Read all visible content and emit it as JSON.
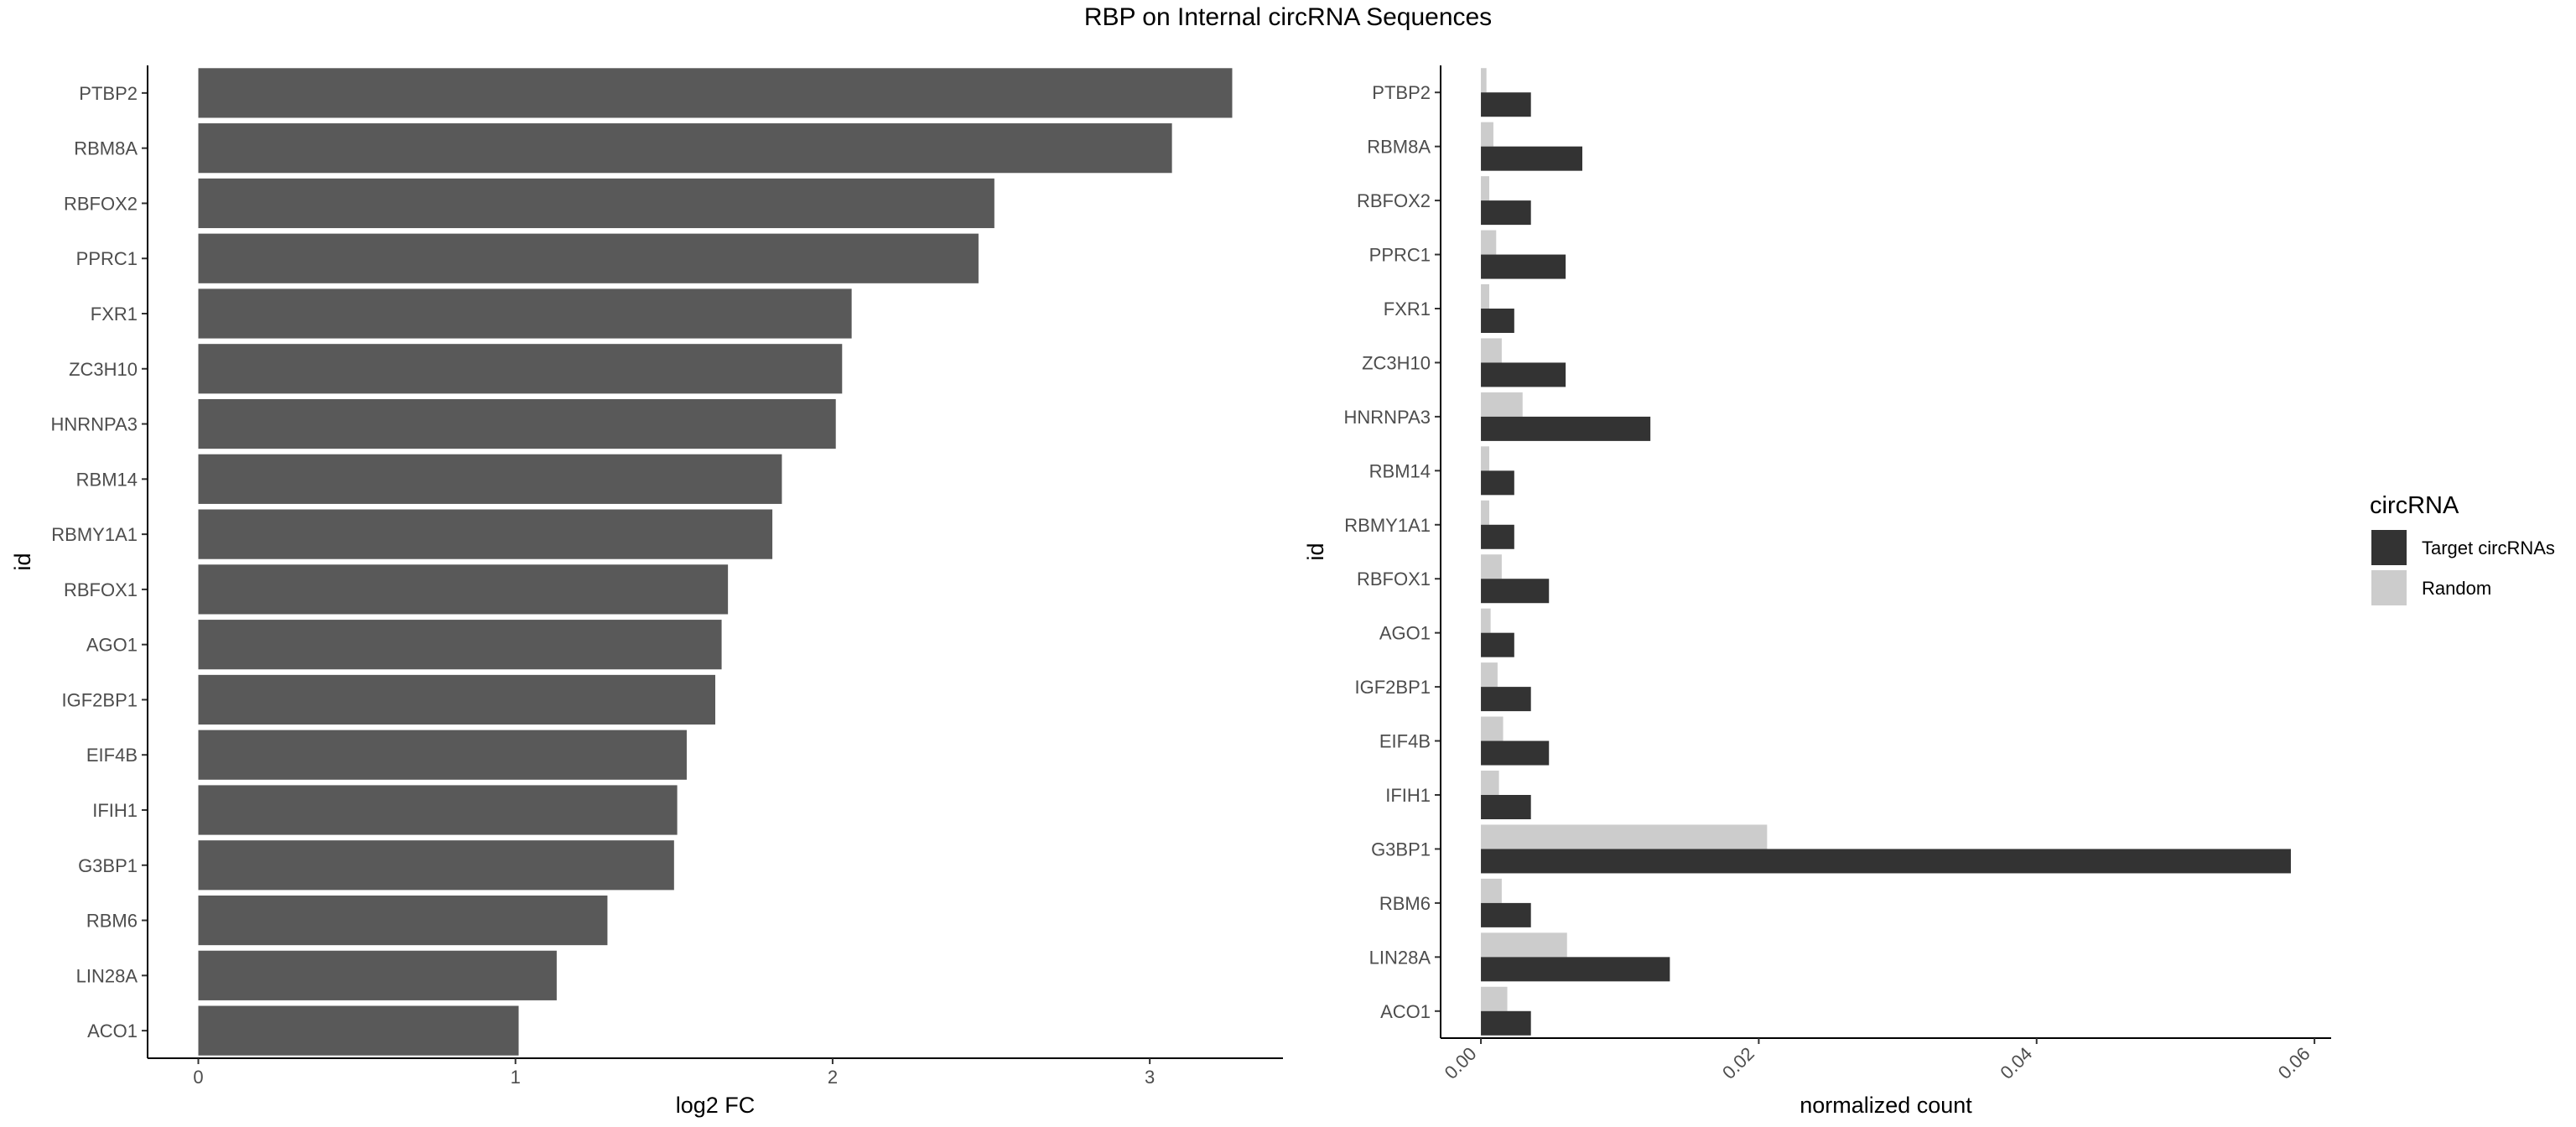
{
  "page": {
    "title": "RBP on Internal circRNA Sequences"
  },
  "chart_data": [
    {
      "type": "bar",
      "orientation": "horizontal",
      "categories": [
        "PTBP2",
        "RBM8A",
        "RBFOX2",
        "PPRC1",
        "FXR1",
        "ZC3H10",
        "HNRNPA3",
        "RBM14",
        "RBMY1A1",
        "RBFOX1",
        "AGO1",
        "IGF2BP1",
        "EIF4B",
        "IFIH1",
        "G3BP1",
        "RBM6",
        "LIN28A",
        "ACO1"
      ],
      "values": [
        3.26,
        3.07,
        2.51,
        2.46,
        2.06,
        2.03,
        2.01,
        1.84,
        1.81,
        1.67,
        1.65,
        1.63,
        1.54,
        1.51,
        1.5,
        1.29,
        1.13,
        1.01
      ],
      "xlabel": "log2 FC",
      "ylabel": "id",
      "xlim": [
        -0.16,
        3.42
      ],
      "xticks": [
        "0",
        "1",
        "2",
        "3"
      ],
      "bar_color": "#595959",
      "grid": false
    },
    {
      "type": "bar",
      "orientation": "horizontal",
      "categories": [
        "PTBP2",
        "RBM8A",
        "RBFOX2",
        "PPRC1",
        "FXR1",
        "ZC3H10",
        "HNRNPA3",
        "RBM14",
        "RBMY1A1",
        "RBFOX1",
        "AGO1",
        "IGF2BP1",
        "EIF4B",
        "IFIH1",
        "G3BP1",
        "RBM6",
        "LIN28A",
        "ACO1"
      ],
      "series": [
        {
          "name": "Target circRNAs",
          "color": "#333333",
          "values": [
            0.0036,
            0.0073,
            0.0036,
            0.0061,
            0.0024,
            0.0061,
            0.0122,
            0.0024,
            0.0024,
            0.0049,
            0.0024,
            0.0036,
            0.0049,
            0.0036,
            0.0583,
            0.0036,
            0.0136,
            0.0036
          ]
        },
        {
          "name": "Random",
          "color": "#cccccc",
          "values": [
            0.0004,
            0.0009,
            0.0006,
            0.0011,
            0.0006,
            0.0015,
            0.003,
            0.0006,
            0.0006,
            0.0015,
            0.0007,
            0.0012,
            0.0016,
            0.0013,
            0.0206,
            0.0015,
            0.0062,
            0.0019
          ]
        }
      ],
      "xlabel": "normalized count",
      "ylabel": "id",
      "xlim": [
        -0.0029,
        0.0612
      ],
      "xticks": [
        "0.00",
        "0.02",
        "0.04",
        "0.06"
      ],
      "legend": {
        "title": "circRNA",
        "position": "right"
      },
      "grid": false
    }
  ]
}
